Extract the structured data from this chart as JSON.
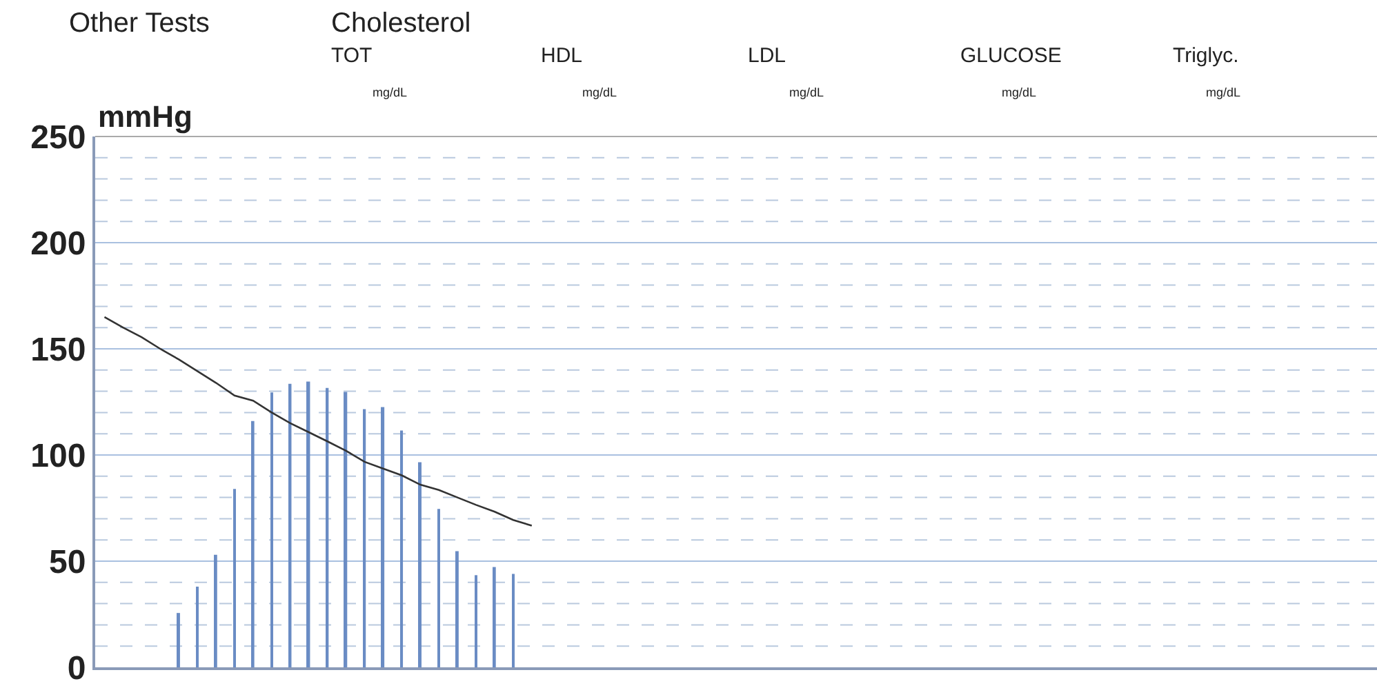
{
  "chart_data": {
    "type": "bar",
    "ylabel": "mmHg",
    "annotations": [
      "Other Tests",
      "Cholesterol",
      "TOT",
      "HDL",
      "LDL",
      "GLUCOSE",
      "Triglyc.",
      "mg/dL",
      "mg/dL",
      "mg/dL",
      "mg/dL",
      "mg/dL"
    ],
    "categories": [
      null,
      null,
      null,
      null,
      null,
      null,
      null,
      null,
      null,
      null,
      null,
      null,
      null,
      null,
      null,
      null,
      null,
      null,
      null,
      null,
      null,
      null,
      null,
      null,
      null,
      null,
      null,
      null,
      null,
      null,
      null,
      null,
      null,
      null,
      null,
      null,
      null,
      null,
      null,
      null,
      null,
      null,
      null,
      null,
      null,
      null,
      null,
      null,
      null,
      null,
      null,
      null,
      null,
      null,
      null,
      null,
      null,
      null,
      null,
      null,
      null,
      null,
      null,
      null,
      null,
      null,
      null,
      null,
      null
    ],
    "series": [
      {
        "color": "#6a8cc4",
        "values": [
          null,
          null,
          null,
          null,
          25.6,
          38,
          53,
          84,
          116,
          129.5,
          133.5,
          134.6,
          131.6,
          129.7,
          121.6,
          122.6,
          111.5,
          96.6,
          74.6,
          54.7,
          43.4,
          47.2,
          44,
          null,
          null,
          null,
          null,
          null,
          null,
          null,
          null,
          null,
          null,
          null,
          null,
          null,
          null,
          null,
          null,
          null,
          null,
          null,
          null,
          null,
          null,
          null,
          null,
          null,
          null,
          null,
          null,
          null,
          null,
          null,
          null,
          null,
          null,
          null,
          null,
          null,
          null,
          null,
          null,
          null,
          null,
          null,
          null,
          null,
          null
        ]
      },
      {
        "type": "line",
        "color": "#333333",
        "values": [
          165,
          160,
          155.5,
          150,
          145,
          139.5,
          134,
          128,
          125.6,
          120,
          115,
          110.7,
          106.4,
          102,
          96.8,
          93.6,
          90.4,
          86,
          83.5,
          80,
          76.5,
          73.3,
          69.4,
          66.7,
          null,
          null,
          null,
          null,
          null,
          null,
          null,
          null,
          null,
          null,
          null,
          null,
          null,
          null,
          null,
          null,
          null,
          null,
          null,
          null,
          null,
          null,
          null,
          null,
          null,
          null,
          null,
          null,
          null,
          null,
          null,
          null,
          null,
          null,
          null,
          null,
          null,
          null,
          null,
          null,
          null,
          null,
          null,
          null,
          null
        ]
      }
    ],
    "ylim": [
      0,
      250
    ],
    "yticks": [
      0,
      {
        "value": 10,
        "label": null
      },
      {
        "value": 20,
        "label": null
      },
      {
        "value": 30,
        "label": null
      },
      {
        "value": 40,
        "label": null
      },
      50,
      {
        "value": 60,
        "label": null
      },
      {
        "value": 70,
        "label": null
      },
      {
        "value": 80,
        "label": null
      },
      {
        "value": 90,
        "label": null
      },
      100,
      {
        "value": 110,
        "label": null
      },
      {
        "value": 120,
        "label": null
      },
      {
        "value": 130,
        "label": null
      },
      {
        "value": 140,
        "label": null
      },
      150,
      {
        "value": 160,
        "label": null
      },
      {
        "value": 170,
        "label": null
      },
      {
        "value": 180,
        "label": null
      },
      {
        "value": 190,
        "label": null
      },
      200,
      {
        "value": 210,
        "label": null
      },
      {
        "value": 220,
        "label": null
      },
      {
        "value": 230,
        "label": null
      },
      {
        "value": 240,
        "label": null
      },
      250
    ],
    "grid": "y",
    "tick_labels": "y",
    "marker": "none"
  }
}
